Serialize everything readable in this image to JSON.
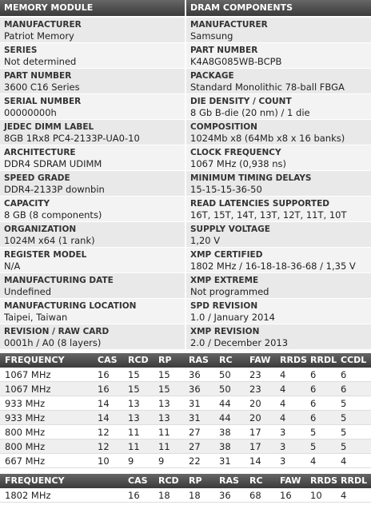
{
  "sections": [
    {
      "title": "MEMORY MODULE",
      "items": [
        {
          "label": "MANUFACTURER",
          "value": "Patriot Memory"
        },
        {
          "label": "SERIES",
          "value": "Not determined"
        },
        {
          "label": "PART NUMBER",
          "value": "3600 C16 Series"
        },
        {
          "label": "SERIAL NUMBER",
          "value": "00000000h"
        },
        {
          "label": "JEDEC DIMM LABEL",
          "value": "8GB 1Rx8 PC4-2133P-UA0-10"
        },
        {
          "label": "ARCHITECTURE",
          "value": "DDR4 SDRAM UDIMM"
        },
        {
          "label": "SPEED GRADE",
          "value": "DDR4-2133P downbin"
        },
        {
          "label": "CAPACITY",
          "value": "8 GB (8 components)"
        },
        {
          "label": "ORGANIZATION",
          "value": "1024M x64 (1 rank)"
        },
        {
          "label": "REGISTER MODEL",
          "value": "N/A"
        },
        {
          "label": "MANUFACTURING DATE",
          "value": "Undefined"
        },
        {
          "label": "MANUFACTURING LOCATION",
          "value": "Taipei, Taiwan"
        },
        {
          "label": "REVISION / RAW CARD",
          "value": "0001h / A0 (8 layers)"
        }
      ]
    },
    {
      "title": "DRAM COMPONENTS",
      "items": [
        {
          "label": "MANUFACTURER",
          "value": "Samsung"
        },
        {
          "label": "PART NUMBER",
          "value": "K4A8G085WB-BCPB"
        },
        {
          "label": "PACKAGE",
          "value": "Standard Monolithic 78-ball FBGA"
        },
        {
          "label": "DIE DENSITY / COUNT",
          "value": "8 Gb B-die (20 nm) / 1 die"
        },
        {
          "label": "COMPOSITION",
          "value": "1024Mb x8 (64Mb x8 x 16 banks)"
        },
        {
          "label": "CLOCK FREQUENCY",
          "value": "1067 MHz (0,938 ns)"
        },
        {
          "label": "MINIMUM TIMING DELAYS",
          "value": "15-15-15-36-50"
        },
        {
          "label": "READ LATENCIES SUPPORTED",
          "value": "16T, 15T, 14T, 13T, 12T, 11T, 10T"
        },
        {
          "label": "SUPPLY VOLTAGE",
          "value": "1,20 V"
        },
        {
          "label": "XMP CERTIFIED",
          "value": "1802 MHz / 16-18-18-36-68 / 1,35 V"
        },
        {
          "label": "XMP EXTREME",
          "value": "Not programmed"
        },
        {
          "label": "SPD REVISION",
          "value": "1.0 / January 2014"
        },
        {
          "label": "XMP REVISION",
          "value": "2.0 / December 2013"
        }
      ]
    }
  ],
  "timings": {
    "header": [
      "FREQUENCY",
      "CAS",
      "RCD",
      "RP",
      "RAS",
      "RC",
      "FAW",
      "RRDS",
      "RRDL",
      "CCDL"
    ],
    "rows": [
      [
        "1067 MHz",
        "16",
        "15",
        "15",
        "36",
        "50",
        "23",
        "4",
        "6",
        "6"
      ],
      [
        "1067 MHz",
        "16",
        "15",
        "15",
        "36",
        "50",
        "23",
        "4",
        "6",
        "6"
      ],
      [
        "933 MHz",
        "14",
        "13",
        "13",
        "31",
        "44",
        "20",
        "4",
        "6",
        "5"
      ],
      [
        "933 MHz",
        "14",
        "13",
        "13",
        "31",
        "44",
        "20",
        "4",
        "6",
        "5"
      ],
      [
        "800 MHz",
        "12",
        "11",
        "11",
        "27",
        "38",
        "17",
        "3",
        "5",
        "5"
      ],
      [
        "800 MHz",
        "12",
        "11",
        "11",
        "27",
        "38",
        "17",
        "3",
        "5",
        "5"
      ],
      [
        "667 MHz",
        "10",
        "9",
        "9",
        "22",
        "31",
        "14",
        "3",
        "4",
        "4"
      ]
    ]
  },
  "xmp_timings": {
    "header": [
      "FREQUENCY",
      "CAS",
      "RCD",
      "RP",
      "RAS",
      "RC",
      "FAW",
      "RRDS",
      "RRDL"
    ],
    "rows": [
      [
        "1802 MHz",
        "16",
        "18",
        "18",
        "36",
        "68",
        "16",
        "10",
        "4"
      ]
    ]
  }
}
